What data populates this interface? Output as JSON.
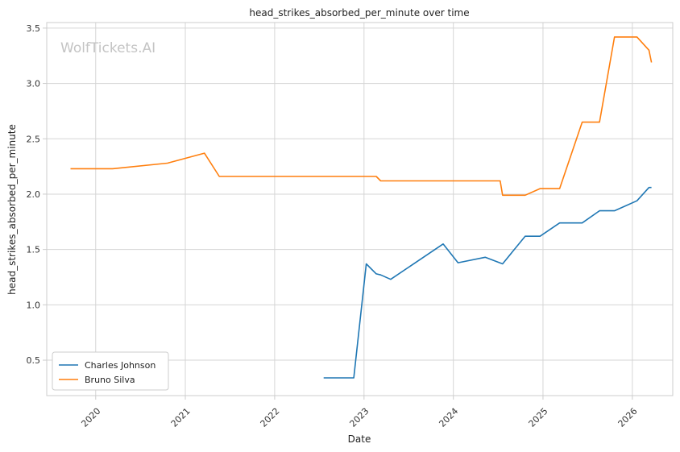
{
  "chart_data": {
    "type": "line",
    "title": "head_strikes_absorbed_per_minute over time",
    "xlabel": "Date",
    "ylabel": "head_strikes_absorbed_per_minute",
    "watermark": "WolfTickets.AI",
    "xlim": [
      "2019-06-15",
      "2026-06-15"
    ],
    "ylim": [
      0.18,
      3.55
    ],
    "x_ticks": [
      "2020",
      "2021",
      "2022",
      "2023",
      "2024",
      "2025",
      "2026"
    ],
    "y_ticks": [
      "0.5",
      "1.0",
      "1.5",
      "2.0",
      "2.5",
      "3.0",
      "3.5"
    ],
    "grid": true,
    "legend_position": "lower-left",
    "series": [
      {
        "name": "Charles Johnson",
        "color": "#1f77b4",
        "points": [
          [
            "2022-07-20",
            0.34
          ],
          [
            "2022-11-20",
            0.34
          ],
          [
            "2023-01-10",
            1.37
          ],
          [
            "2023-02-20",
            1.28
          ],
          [
            "2023-03-10",
            1.27
          ],
          [
            "2023-04-20",
            1.23
          ],
          [
            "2023-11-20",
            1.55
          ],
          [
            "2024-01-20",
            1.38
          ],
          [
            "2024-05-10",
            1.43
          ],
          [
            "2024-07-20",
            1.37
          ],
          [
            "2024-10-20",
            1.62
          ],
          [
            "2024-12-20",
            1.62
          ],
          [
            "2025-03-10",
            1.74
          ],
          [
            "2025-06-10",
            1.74
          ],
          [
            "2025-08-20",
            1.85
          ],
          [
            "2025-10-20",
            1.85
          ],
          [
            "2026-01-20",
            1.94
          ],
          [
            "2026-03-10",
            2.06
          ],
          [
            "2026-03-20",
            2.06
          ]
        ]
      },
      {
        "name": "Bruno Silva",
        "color": "#ff7f0e",
        "points": [
          [
            "2019-09-20",
            2.23
          ],
          [
            "2020-03-10",
            2.23
          ],
          [
            "2020-10-20",
            2.28
          ],
          [
            "2021-03-20",
            2.37
          ],
          [
            "2021-05-20",
            2.16
          ],
          [
            "2023-02-20",
            2.16
          ],
          [
            "2023-03-10",
            2.12
          ],
          [
            "2024-07-10",
            2.12
          ],
          [
            "2024-07-20",
            1.99
          ],
          [
            "2024-10-20",
            1.99
          ],
          [
            "2024-12-20",
            2.05
          ],
          [
            "2025-03-10",
            2.05
          ],
          [
            "2025-06-10",
            2.65
          ],
          [
            "2025-08-20",
            2.65
          ],
          [
            "2025-10-20",
            3.42
          ],
          [
            "2026-01-20",
            3.42
          ],
          [
            "2026-03-10",
            3.3
          ],
          [
            "2026-03-20",
            3.19
          ]
        ]
      }
    ]
  }
}
